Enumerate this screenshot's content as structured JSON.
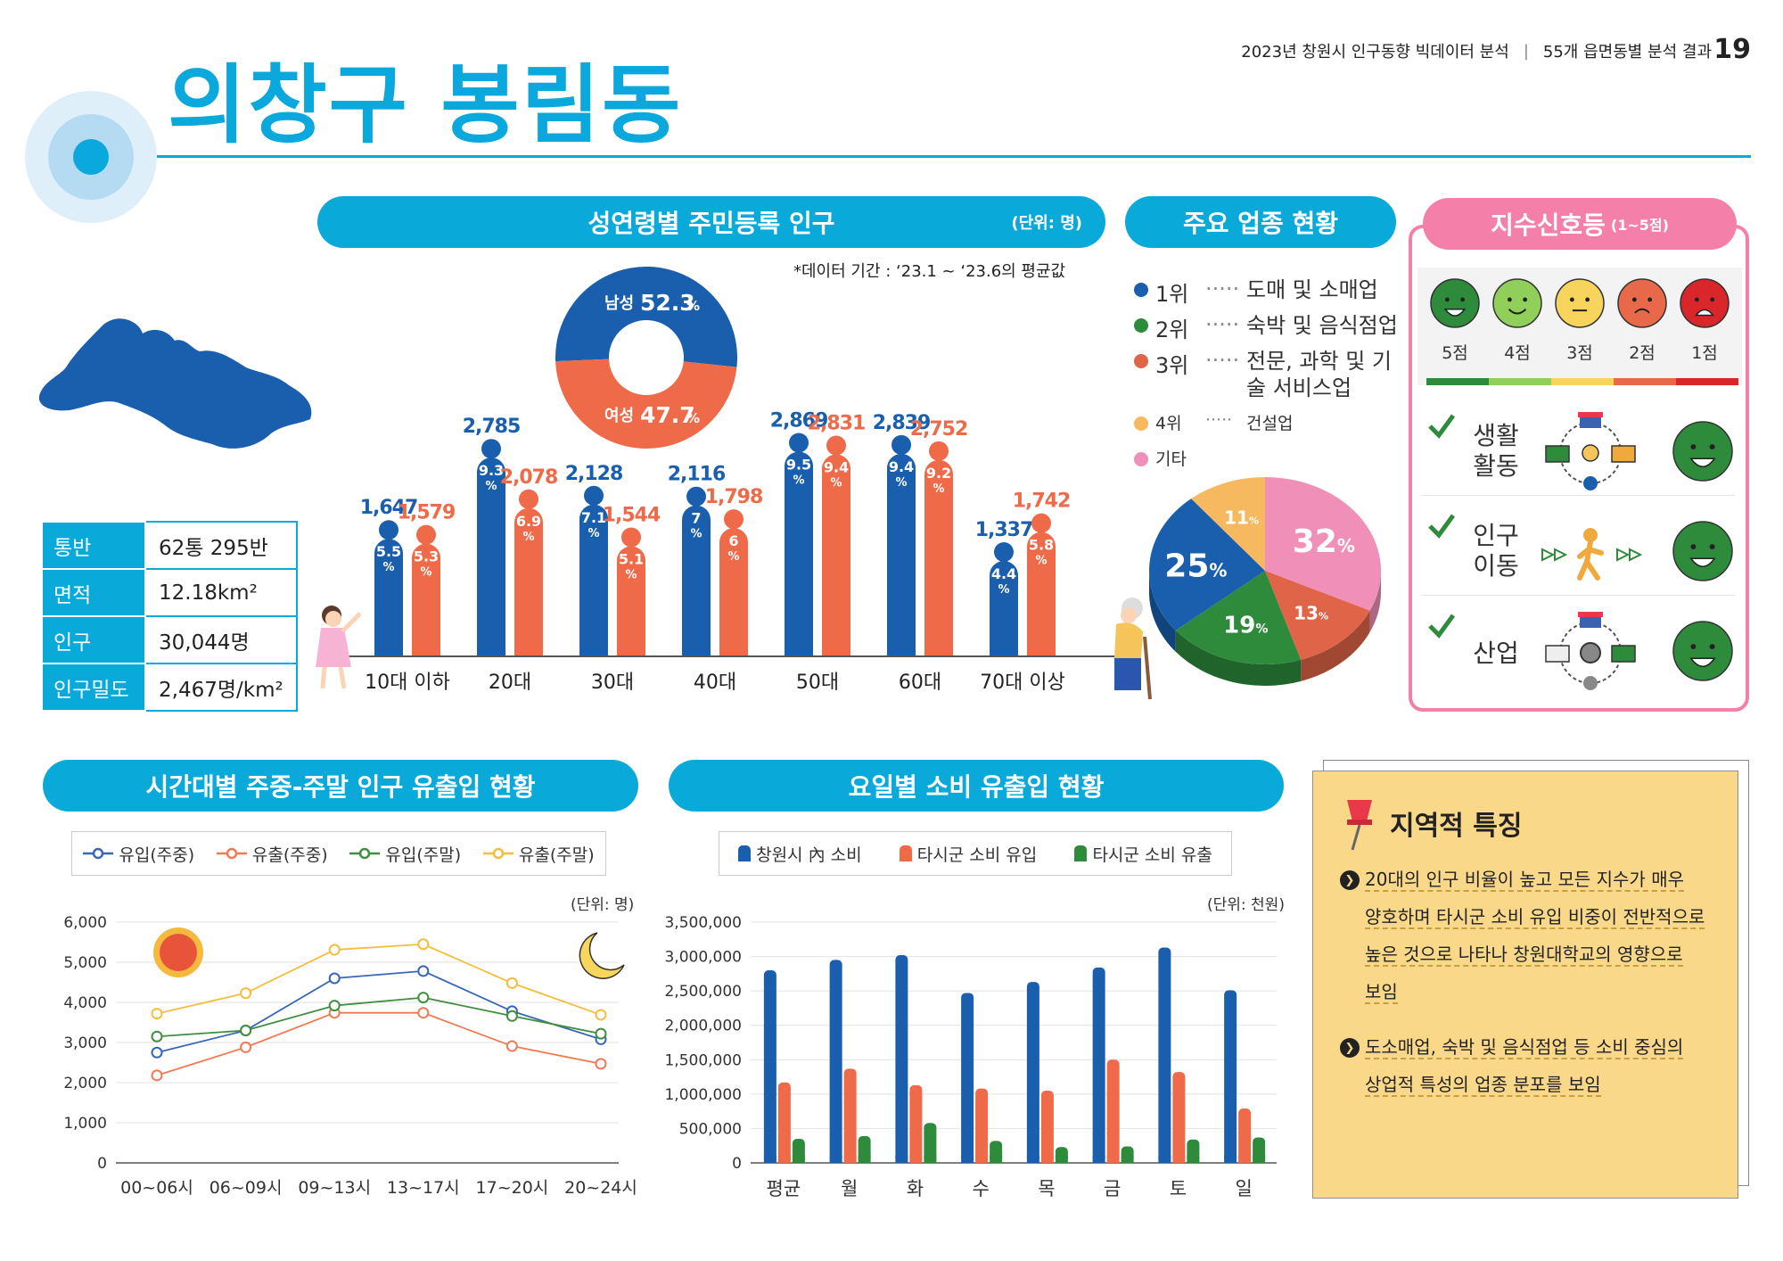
{
  "header": {
    "title": "의창구 봉림동",
    "report": "2023년 창원시 인구동향 빅데이터 분석",
    "section": "55개 읍면동별 분석 결과",
    "page": "19"
  },
  "info_table": [
    {
      "key": "통반",
      "value": "62통 295반"
    },
    {
      "key": "면적",
      "value": "12.18km²"
    },
    {
      "key": "인구",
      "value": "30,044명"
    },
    {
      "key": "인구밀도",
      "value": "2,467명/km²"
    }
  ],
  "population": {
    "title": "성연령별 주민등록 인구",
    "unit": "(단위: 명)",
    "note": "*데이터 기간 : ‘23.1 ~ ‘23.6의 평균값",
    "male_label": "남성",
    "male_pct": "52.3",
    "female_label": "여성",
    "female_pct": "47.7",
    "pct_sign": "%",
    "colors": {
      "male": "#1a5fad",
      "female": "#ef6a48"
    },
    "groups": [
      {
        "label": "10대 이하",
        "male": 1647,
        "female": 1579,
        "male_text": "1,647",
        "female_text": "1,579",
        "male_pct": "5.5",
        "female_pct": "5.3"
      },
      {
        "label": "20대",
        "male": 2785,
        "female": 2078,
        "male_text": "2,785",
        "female_text": "2,078",
        "male_pct": "9.3",
        "female_pct": "6.9"
      },
      {
        "label": "30대",
        "male": 2128,
        "female": 1544,
        "male_text": "2,128",
        "female_text": "1,544",
        "male_pct": "7.1",
        "female_pct": "5.1"
      },
      {
        "label": "40대",
        "male": 2116,
        "female": 1798,
        "male_text": "2,116",
        "female_text": "1,798",
        "male_pct": "7",
        "female_pct": "6"
      },
      {
        "label": "50대",
        "male": 2869,
        "female": 2831,
        "male_text": "2,869",
        "female_text": "2,831",
        "male_pct": "9.5",
        "female_pct": "9.4"
      },
      {
        "label": "60대",
        "male": 2839,
        "female": 2752,
        "male_text": "2,839",
        "female_text": "2,752",
        "male_pct": "9.4",
        "female_pct": "9.2"
      },
      {
        "label": "70대 이상",
        "male": 1337,
        "female": 1742,
        "male_text": "1,337",
        "female_text": "1,742",
        "male_pct": "4.4",
        "female_pct": "5.8"
      }
    ]
  },
  "industry": {
    "title": "주요 업종 현황",
    "ranks": [
      {
        "rank": "1위",
        "dots": "·····",
        "name": "도매 및 소매업",
        "color": "#1a5fad"
      },
      {
        "rank": "2위",
        "dots": "·····",
        "name": "숙박 및 음식점업",
        "color": "#2e8b3c"
      },
      {
        "rank": "3위",
        "dots": "·····",
        "name": "전문, 과학 및 기술 서비스업",
        "color": "#e06448"
      },
      {
        "rank": "4위",
        "dots": "·····",
        "name": "건설업",
        "color": "#f7b960"
      },
      {
        "rank": "기타",
        "dots": "",
        "name": "",
        "color": "#f090b8"
      }
    ],
    "pie": [
      {
        "label": "32",
        "value": 32,
        "color": "#f090b8"
      },
      {
        "label": "13",
        "value": 13,
        "color": "#e06448"
      },
      {
        "label": "19",
        "value": 19,
        "color": "#2e8b3c"
      },
      {
        "label": "25",
        "value": 25,
        "color": "#1a5fad"
      },
      {
        "label": "11",
        "value": 11,
        "color": "#f7b960"
      }
    ]
  },
  "signal": {
    "title": "지수신호등",
    "range": "(1~5점)",
    "scores": [
      {
        "label": "5점",
        "color": "#2e8b3c"
      },
      {
        "label": "4점",
        "color": "#8fcf5a"
      },
      {
        "label": "3점",
        "color": "#f7d45c"
      },
      {
        "label": "2점",
        "color": "#e8694a"
      },
      {
        "label": "1점",
        "color": "#d9262a"
      }
    ],
    "items": [
      {
        "label1": "생활",
        "label2": "활동"
      },
      {
        "label1": "인구",
        "label2": "이동"
      },
      {
        "label1": "산업",
        "label2": ""
      }
    ]
  },
  "timeflow": {
    "title": "시간대별 주중-주말 인구 유출입 현황",
    "unit": "(단위: 명)",
    "chart_data": {
      "type": "line",
      "x": [
        "00~06시",
        "06~09시",
        "09~13시",
        "13~17시",
        "17~20시",
        "20~24시"
      ],
      "ylim": [
        0,
        6000
      ],
      "yticks": [
        "6,000",
        "5,000",
        "4,000",
        "3,000",
        "2,000",
        "1,000",
        "0"
      ],
      "series": [
        {
          "name": "유입(주중)",
          "color": "#3867b5",
          "values": [
            2750,
            3300,
            4600,
            4780,
            3780,
            3080
          ]
        },
        {
          "name": "유출(주중)",
          "color": "#ef7a55",
          "values": [
            2180,
            2880,
            3740,
            3740,
            2910,
            2470
          ]
        },
        {
          "name": "유입(주말)",
          "color": "#3f8f3f",
          "values": [
            3150,
            3300,
            3920,
            4120,
            3660,
            3220
          ]
        },
        {
          "name": "유출(주말)",
          "color": "#f5bd3c",
          "values": [
            3720,
            4230,
            5310,
            5450,
            4480,
            3690
          ]
        }
      ]
    }
  },
  "consume": {
    "title": "요일별 소비 유출입 현황",
    "unit": "(단위: 천원)",
    "chart_data": {
      "type": "bar",
      "categories": [
        "평균",
        "월",
        "화",
        "수",
        "목",
        "금",
        "토",
        "일"
      ],
      "ylim": [
        0,
        3500000
      ],
      "yticks": [
        "3,500,000",
        "3,000,000",
        "2,500,000",
        "2,000,000",
        "1,500,000",
        "1,000,000",
        "500,000",
        "0"
      ],
      "series": [
        {
          "name": "창원시 內 소비",
          "color": "#1a5fad",
          "values": [
            2800000,
            2950000,
            3020000,
            2470000,
            2630000,
            2840000,
            3130000,
            2510000
          ]
        },
        {
          "name": "타시군 소비 유입",
          "color": "#ef6a48",
          "values": [
            1170000,
            1370000,
            1130000,
            1080000,
            1050000,
            1500000,
            1320000,
            790000
          ]
        },
        {
          "name": "타시군 소비 유출",
          "color": "#2e8b3c",
          "values": [
            350000,
            390000,
            580000,
            320000,
            230000,
            240000,
            340000,
            370000
          ]
        }
      ]
    }
  },
  "feature": {
    "title": "지역적 특징",
    "bullets": [
      [
        "20대의 인구 비율이 높고 모든 지수가 매우",
        "양호하며 타시군 소비 유입 비중이 전반적으로",
        "높은 것으로 나타나 창원대학교의 영향으로",
        "보임"
      ],
      [
        "도소매업, 숙박 및 음식점업 등 소비 중심의",
        "상업적 특성의 업종 분포를 보임"
      ]
    ]
  }
}
